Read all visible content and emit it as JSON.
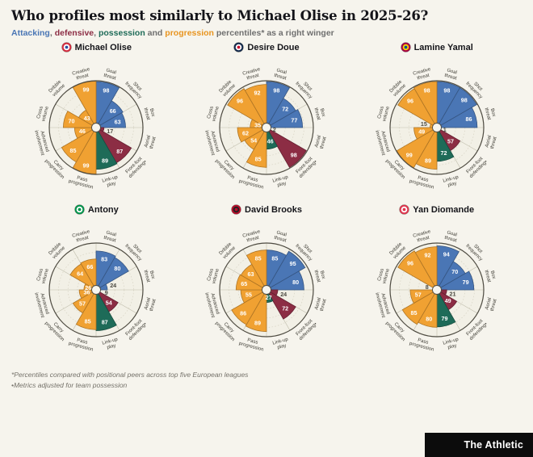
{
  "header": {
    "title": "Who profiles most similarly to Michael Olise in 2025-26?",
    "subtitle_parts": [
      {
        "text": "Attacking",
        "color": "#4a76b5"
      },
      {
        "text": ", ",
        "color": "#6f6f6f"
      },
      {
        "text": "defensive",
        "color": "#8c2d44"
      },
      {
        "text": ", ",
        "color": "#6f6f6f"
      },
      {
        "text": "possession",
        "color": "#1e6b58"
      },
      {
        "text": " and ",
        "color": "#6f6f6f"
      },
      {
        "text": "progression",
        "color": "#e8941f"
      },
      {
        "text": " percentiles* as a right winger",
        "color": "#6f6f6f"
      }
    ]
  },
  "chart_data": {
    "type": "pizza",
    "axis_max": 100,
    "categories": [
      "Goal threat",
      "Shot frequency",
      "Box threat",
      "Aerial threat",
      "Front-foot defending•",
      "Link-up play",
      "Pass progression",
      "Carry progression",
      "Advanced involvement",
      "Cross volume",
      "Dribble volume",
      "Creative threat"
    ],
    "category_groups": [
      "attacking",
      "attacking",
      "attacking",
      "defensive",
      "defensive",
      "possession",
      "progression",
      "progression",
      "progression",
      "progression",
      "progression",
      "progression"
    ],
    "group_colors": {
      "attacking": "#4a76b5",
      "defensive": "#8c2d44",
      "possession": "#1e6b58",
      "progression": "#f0a132"
    },
    "players": [
      {
        "name": "Michael Olise",
        "badge_colors": [
          "#d52b3f",
          "#ffffff",
          "#2d4f9e"
        ],
        "values": [
          98,
          66,
          63,
          17,
          87,
          89,
          99,
          85,
          46,
          70,
          43,
          99
        ]
      },
      {
        "name": "Desire Doue",
        "badge_colors": [
          "#12284b",
          "#ffffff",
          "#c8102e"
        ],
        "values": [
          98,
          72,
          77,
          2,
          98,
          46,
          85,
          54,
          62,
          35,
          96,
          92
        ]
      },
      {
        "name": "Lamine Yamal",
        "badge_colors": [
          "#a50044",
          "#ffd100",
          "#004d98"
        ],
        "values": [
          98,
          98,
          86,
          1,
          57,
          72,
          89,
          99,
          49,
          15,
          96,
          98
        ]
      },
      {
        "name": "Antony",
        "badge_colors": [
          "#00954c",
          "#ffffff",
          "#00954c"
        ],
        "values": [
          83,
          80,
          24,
          9,
          54,
          87,
          85,
          57,
          36,
          26,
          64,
          66
        ]
      },
      {
        "name": "David Brooks",
        "badge_colors": [
          "#b50e2c",
          "#241f20",
          "#b50e2c"
        ],
        "values": [
          85,
          95,
          80,
          24,
          72,
          27,
          89,
          86,
          55,
          65,
          63,
          85
        ]
      },
      {
        "name": "Yan Diomande",
        "badge_colors": [
          "#e0354e",
          "#ffffff",
          "#e0354e"
        ],
        "values": [
          94,
          70,
          79,
          21,
          49,
          79,
          80,
          85,
          57,
          8,
          96,
          92
        ]
      }
    ]
  },
  "footnotes": [
    "*Percentiles compared with positional peers across top five European leagues",
    "•Metrics adjusted for team possession"
  ],
  "brand": {
    "label": "The Athletic"
  }
}
